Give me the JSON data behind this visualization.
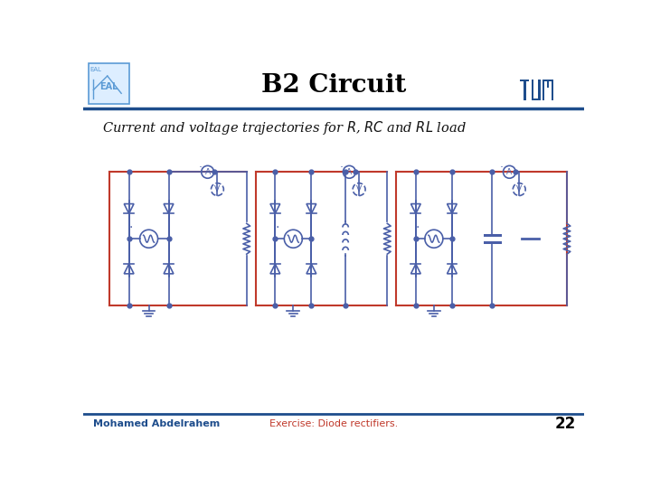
{
  "title": "B2 Circuit",
  "subtitle_plain": "Current and voltage trajectories for ",
  "subtitle_math": [
    "R",
    ", ",
    "RC",
    " and ",
    "RL",
    " load"
  ],
  "author": "Mohamed Abdelrahem",
  "exercise": "Exercise: Diode rectifiers.",
  "page_number": "22",
  "bg_color": "#ffffff",
  "title_color": "#000000",
  "header_line_color": "#1e4d8c",
  "circuit_color": "#4a5fa8",
  "red_wire_color": "#c0392b",
  "footer_author_color": "#1e4d8c",
  "footer_exercise_color": "#c0392b",
  "tum_color": "#1e4d8c",
  "eal_color": "#5b9bd5",
  "header_bg": "#ffffff"
}
